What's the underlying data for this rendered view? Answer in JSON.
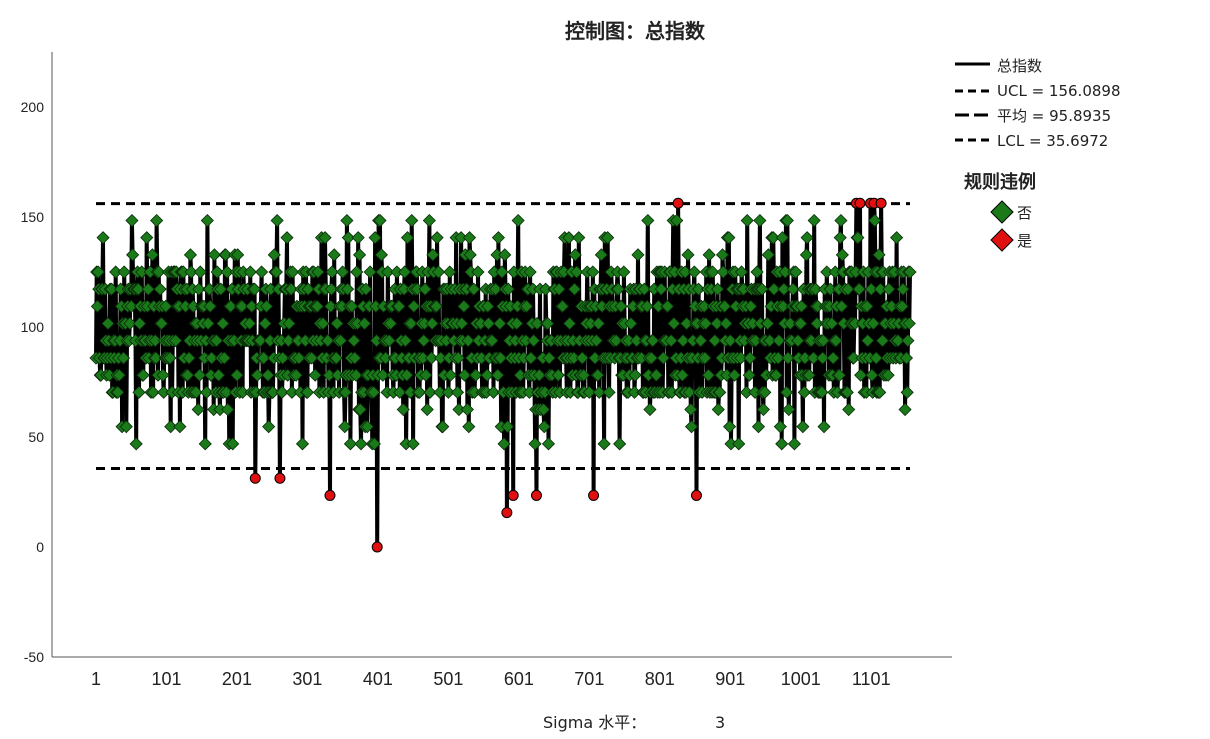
{
  "chart_data": {
    "type": "line",
    "title": "控制图：总指数",
    "xlabel": "",
    "ylabel": "",
    "x_ticks": [
      "1",
      "101",
      "201",
      "301",
      "401",
      "501",
      "601",
      "701",
      "801",
      "901",
      "1001",
      "1101"
    ],
    "x_range": [
      1,
      1156
    ],
    "ylim": [
      -50,
      225
    ],
    "y_ticks": [
      -50,
      0,
      50,
      100,
      150,
      200
    ],
    "grid": false,
    "n_points": 1156,
    "series": [
      {
        "name": "总指数",
        "role": "values",
        "color": "#000000"
      }
    ],
    "control_lines": {
      "ucl": {
        "label": "UCL = 156.0898",
        "value": 156.0898
      },
      "mean": {
        "label": "平均 = 95.8935",
        "value": 95.8935
      },
      "lcl": {
        "label": "LCL = 35.6972",
        "value": 35.6972
      }
    },
    "violations": [
      {
        "x": 227,
        "y": 31.25
      },
      {
        "x": 262,
        "y": 31.25
      },
      {
        "x": 333,
        "y": 23.44
      },
      {
        "x": 400,
        "y": 0
      },
      {
        "x": 584,
        "y": 15.63
      },
      {
        "x": 593,
        "y": 23.44
      },
      {
        "x": 626,
        "y": 23.44
      },
      {
        "x": 707,
        "y": 23.44
      },
      {
        "x": 827,
        "y": 156.25
      },
      {
        "x": 853,
        "y": 23.44
      },
      {
        "x": 1080,
        "y": 156.25
      },
      {
        "x": 1085,
        "y": 156.25
      },
      {
        "x": 1100,
        "y": 156.25
      },
      {
        "x": 1105,
        "y": 156.25
      },
      {
        "x": 1115,
        "y": 156.25
      }
    ],
    "rule_legend": {
      "title": "规则违例",
      "items": [
        {
          "label": "否",
          "color": "#1a7a1a"
        },
        {
          "label": "是",
          "color": "#e01010"
        }
      ]
    },
    "legend_position": "right"
  },
  "footer": {
    "sigma_label": "Sigma 水平：",
    "sigma_value": "3"
  },
  "colors": {
    "normal_marker": "#1a7a1a",
    "violation_marker": "#e01010",
    "line": "#000000"
  }
}
